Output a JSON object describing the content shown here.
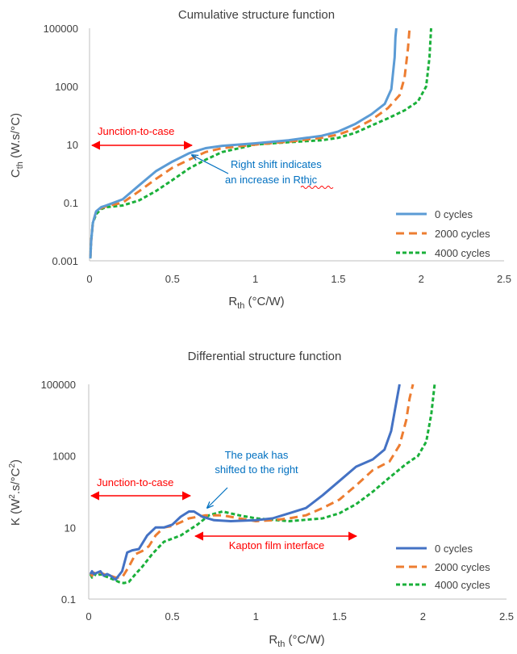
{
  "colors": {
    "series_0": "#5b9bd5",
    "series_0_bottom": "#4472c4",
    "series_2000": "#ed7d31",
    "series_4000": "#1ab03a",
    "annotation_red": "#ff0000",
    "annotation_blue": "#0070c0",
    "axis": "#bfbfbf",
    "text": "#404040"
  },
  "chart_data": [
    {
      "type": "line",
      "title": "Cumulative structure function",
      "ylabel_main": "C",
      "ylabel_sub": "th",
      "ylabel_unit": " (W.s/°C)",
      "xlabel_main": "R",
      "xlabel_sub": "th",
      "xlabel_unit": " (°C/W)",
      "xlim": [
        0,
        2.5
      ],
      "ylim": [
        0.001,
        100000
      ],
      "yscale": "log",
      "xticks": [
        0,
        0.5,
        1,
        1.5,
        2,
        2.5
      ],
      "xtick_labels": [
        "0",
        "0.5",
        "1",
        "1.5",
        "2",
        "2.5"
      ],
      "yticks": [
        0.001,
        0.1,
        10,
        1000,
        100000
      ],
      "ytick_labels": [
        "0.001",
        "0.1",
        "10",
        "1000",
        "100000"
      ],
      "grid": "none",
      "legend_position": "bottom-right",
      "series": [
        {
          "name": "0 cycles",
          "style": "solid",
          "x": [
            0.005,
            0.01,
            0.02,
            0.04,
            0.07,
            0.1,
            0.2,
            0.3,
            0.4,
            0.5,
            0.6,
            0.7,
            0.8,
            1.0,
            1.2,
            1.4,
            1.5,
            1.6,
            1.7,
            1.78,
            1.82,
            1.84,
            1.845,
            1.85
          ],
          "y": [
            0.0012,
            0.005,
            0.02,
            0.05,
            0.07,
            0.08,
            0.13,
            0.4,
            1.2,
            2.6,
            5,
            7.5,
            9,
            11,
            14,
            20,
            28,
            50,
            110,
            250,
            800,
            10000,
            50000,
            100000
          ]
        },
        {
          "name": "2000 cycles",
          "style": "dashed",
          "x": [
            0.005,
            0.01,
            0.02,
            0.04,
            0.07,
            0.1,
            0.2,
            0.3,
            0.4,
            0.5,
            0.6,
            0.7,
            0.8,
            1.0,
            1.2,
            1.4,
            1.5,
            1.6,
            1.7,
            1.8,
            1.87,
            1.9,
            1.92,
            1.93
          ],
          "y": [
            0.0012,
            0.005,
            0.02,
            0.05,
            0.065,
            0.075,
            0.1,
            0.25,
            0.65,
            1.6,
            3,
            5.5,
            7.5,
            10,
            12.5,
            17,
            22,
            35,
            70,
            180,
            500,
            2000,
            20000,
            100000
          ]
        },
        {
          "name": "4000 cycles",
          "style": "dotted",
          "x": [
            0.005,
            0.01,
            0.02,
            0.04,
            0.07,
            0.1,
            0.2,
            0.3,
            0.4,
            0.5,
            0.6,
            0.7,
            0.8,
            1.0,
            1.2,
            1.4,
            1.5,
            1.6,
            1.7,
            1.8,
            1.9,
            1.98,
            2.03,
            2.05,
            2.06
          ],
          "y": [
            0.0012,
            0.005,
            0.02,
            0.04,
            0.06,
            0.07,
            0.08,
            0.12,
            0.25,
            0.6,
            1.5,
            3,
            5.5,
            10,
            12,
            14,
            17,
            25,
            45,
            80,
            150,
            300,
            1000,
            10000,
            100000
          ]
        }
      ],
      "annotations": [
        {
          "text": "Junction-to-case",
          "color": "red"
        },
        {
          "text_lines": [
            "Right shift indicates",
            "an increase in Rthjc"
          ],
          "color": "blue"
        }
      ]
    },
    {
      "type": "line",
      "title": "Differential structure function",
      "ylabel_main": "K (W",
      "ylabel_sup": "2",
      "ylabel_unit": ".s/°C",
      "ylabel_sup2": "2",
      "ylabel_close": ")",
      "xlabel_main": "R",
      "xlabel_sub": "th",
      "xlabel_unit": " (°C/W)",
      "xlim": [
        0,
        2.5
      ],
      "ylim": [
        0.1,
        100000
      ],
      "yscale": "log",
      "xticks": [
        0,
        0.5,
        1,
        1.5,
        2,
        2.5
      ],
      "xtick_labels": [
        "0",
        "0.5",
        "1",
        "1.5",
        "2",
        "2.5"
      ],
      "yticks": [
        0.1,
        10,
        1000,
        100000
      ],
      "ytick_labels": [
        "0.1",
        "10",
        "1000",
        "100000"
      ],
      "grid": "none",
      "legend_position": "bottom-right",
      "series": [
        {
          "name": "0 cycles",
          "style": "solid",
          "x": [
            0.01,
            0.02,
            0.03,
            0.05,
            0.07,
            0.09,
            0.11,
            0.13,
            0.16,
            0.2,
            0.23,
            0.26,
            0.3,
            0.35,
            0.4,
            0.45,
            0.5,
            0.55,
            0.6,
            0.63,
            0.68,
            0.75,
            0.85,
            1.0,
            1.1,
            1.2,
            1.3,
            1.4,
            1.5,
            1.6,
            1.7,
            1.77,
            1.81,
            1.84,
            1.86
          ],
          "y": [
            0.5,
            0.6,
            0.5,
            0.55,
            0.6,
            0.45,
            0.5,
            0.45,
            0.35,
            0.6,
            2,
            2.3,
            2.5,
            6,
            10,
            10,
            12,
            20,
            28,
            28,
            20,
            16,
            15,
            16,
            18,
            25,
            35,
            80,
            200,
            500,
            800,
            1500,
            5000,
            30000,
            100000
          ]
        },
        {
          "name": "2000 cycles",
          "style": "dashed",
          "x": [
            0.01,
            0.02,
            0.03,
            0.05,
            0.07,
            0.09,
            0.11,
            0.13,
            0.16,
            0.2,
            0.24,
            0.28,
            0.32,
            0.36,
            0.4,
            0.45,
            0.5,
            0.55,
            0.6,
            0.7,
            0.8,
            0.9,
            1.0,
            1.1,
            1.2,
            1.3,
            1.4,
            1.5,
            1.6,
            1.7,
            1.8,
            1.86,
            1.9,
            1.92,
            1.94
          ],
          "y": [
            0.55,
            0.45,
            0.55,
            0.5,
            0.55,
            0.5,
            0.45,
            0.45,
            0.4,
            0.4,
            0.8,
            1.8,
            2.2,
            3,
            6,
            10,
            11,
            14,
            18,
            22,
            22,
            18,
            15,
            16,
            18,
            22,
            35,
            60,
            150,
            400,
            700,
            2000,
            10000,
            40000,
            100000
          ]
        },
        {
          "name": "4000 cycles",
          "style": "dotted",
          "x": [
            0.01,
            0.02,
            0.03,
            0.05,
            0.07,
            0.09,
            0.12,
            0.15,
            0.18,
            0.21,
            0.24,
            0.28,
            0.32,
            0.38,
            0.45,
            0.55,
            0.65,
            0.72,
            0.8,
            0.9,
            1.0,
            1.2,
            1.4,
            1.5,
            1.6,
            1.7,
            1.8,
            1.9,
            1.97,
            2.02,
            2.05,
            2.07
          ],
          "y": [
            0.5,
            0.4,
            0.5,
            0.45,
            0.5,
            0.45,
            0.4,
            0.35,
            0.3,
            0.28,
            0.3,
            0.5,
            0.8,
            1.8,
            4,
            6,
            12,
            22,
            28,
            22,
            18,
            15,
            18,
            25,
            45,
            100,
            250,
            600,
            1000,
            2500,
            15000,
            100000
          ]
        }
      ],
      "annotations": [
        {
          "text": "Junction-to-case",
          "color": "red"
        },
        {
          "text": "Kapton film interface",
          "color": "red"
        },
        {
          "text_lines": [
            "The peak has",
            "shifted to the right"
          ],
          "color": "blue"
        }
      ]
    }
  ]
}
